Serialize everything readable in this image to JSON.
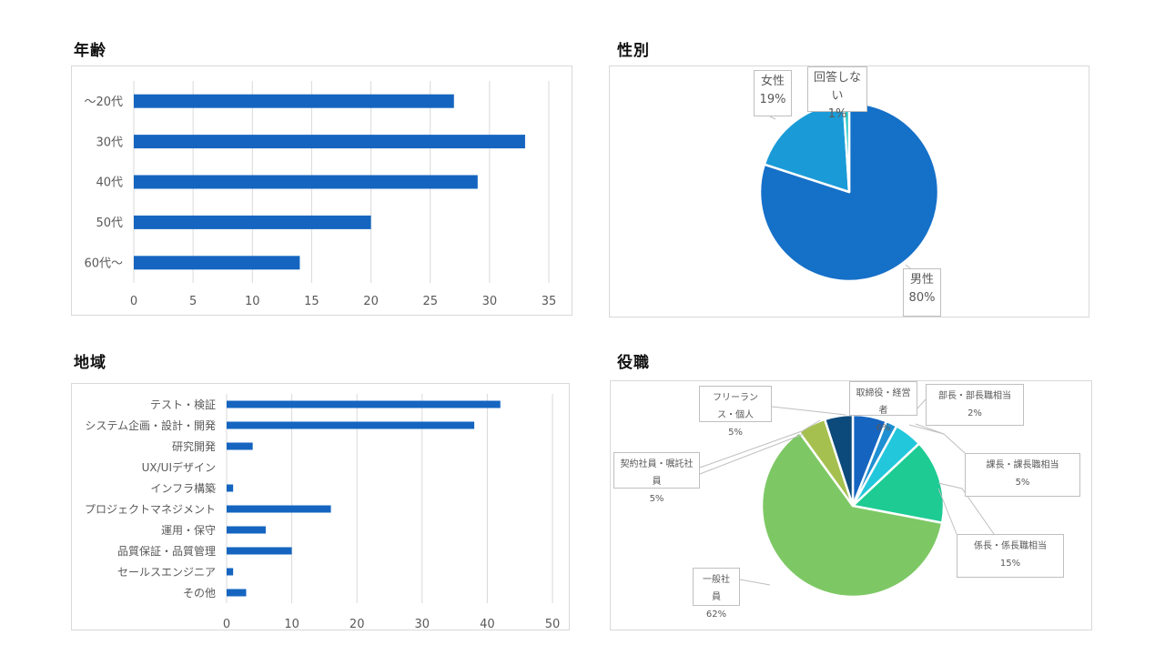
{
  "sections": {
    "age": {
      "title": "年齢"
    },
    "gender": {
      "title": "性別"
    },
    "region": {
      "title": "地域"
    },
    "role": {
      "title": "役職"
    }
  },
  "colors": {
    "bar": "#1565C0",
    "grid": "#d9d9d9",
    "axis_text": "#595959",
    "border": "#d9d9d9"
  },
  "chart_data": [
    {
      "id": "age",
      "type": "bar",
      "orientation": "horizontal",
      "title": "年齢",
      "categories": [
        "～20代",
        "30代",
        "40代",
        "50代",
        "60代～"
      ],
      "values": [
        27,
        33,
        29,
        20,
        14
      ],
      "xlabel": "",
      "ylabel": "",
      "xlim": [
        0,
        35
      ],
      "xticks": [
        0,
        5,
        10,
        15,
        20,
        25,
        30,
        35
      ],
      "grid": true,
      "legend": "none"
    },
    {
      "id": "gender",
      "type": "pie",
      "title": "性別",
      "slices": [
        {
          "label": "男性",
          "value": 80,
          "display": "80%",
          "color": "#1570C8"
        },
        {
          "label": "女性",
          "value": 19,
          "display": "19%",
          "color": "#1A9BD7"
        },
        {
          "label": "回答しない",
          "value": 1,
          "display": "1%",
          "color": "#2AC9C9"
        }
      ],
      "legend": "data-labels"
    },
    {
      "id": "region",
      "type": "bar",
      "orientation": "horizontal",
      "title": "地域",
      "categories": [
        "テスト・検証",
        "システム企画・設計・開発",
        "研究開発",
        "UX/UIデザイン",
        "インフラ構築",
        "プロジェクトマネジメント",
        "運用・保守",
        "品質保証・品質管理",
        "セールスエンジニア",
        "その他"
      ],
      "values": [
        42,
        38,
        4,
        0,
        1,
        16,
        6,
        10,
        1,
        3
      ],
      "xlabel": "",
      "ylabel": "",
      "xlim": [
        0,
        50
      ],
      "xticks": [
        0,
        10,
        20,
        30,
        40,
        50
      ],
      "grid": true,
      "legend": "none"
    },
    {
      "id": "role",
      "type": "pie",
      "title": "役職",
      "slices": [
        {
          "label": "取締役・経営者",
          "value": 6,
          "display": "6%",
          "color": "#1565C0"
        },
        {
          "label": "部長・部長職相当",
          "value": 2,
          "display": "2%",
          "color": "#1E8FD2"
        },
        {
          "label": "課長・課長職相当",
          "value": 5,
          "display": "5%",
          "color": "#22C7DB"
        },
        {
          "label": "係長・係長職相当",
          "value": 15,
          "display": "15%",
          "color": "#1DCB93"
        },
        {
          "label": "一般社員",
          "value": 62,
          "display": "62%",
          "color": "#7DC864"
        },
        {
          "label": "契約社員・嘱託社員",
          "value": 5,
          "display": "5%",
          "color": "#A5C04E"
        },
        {
          "label": "フリーランス・個人",
          "value": 5,
          "display": "5%",
          "color": "#0B4A7A"
        }
      ],
      "legend": "data-labels"
    }
  ]
}
